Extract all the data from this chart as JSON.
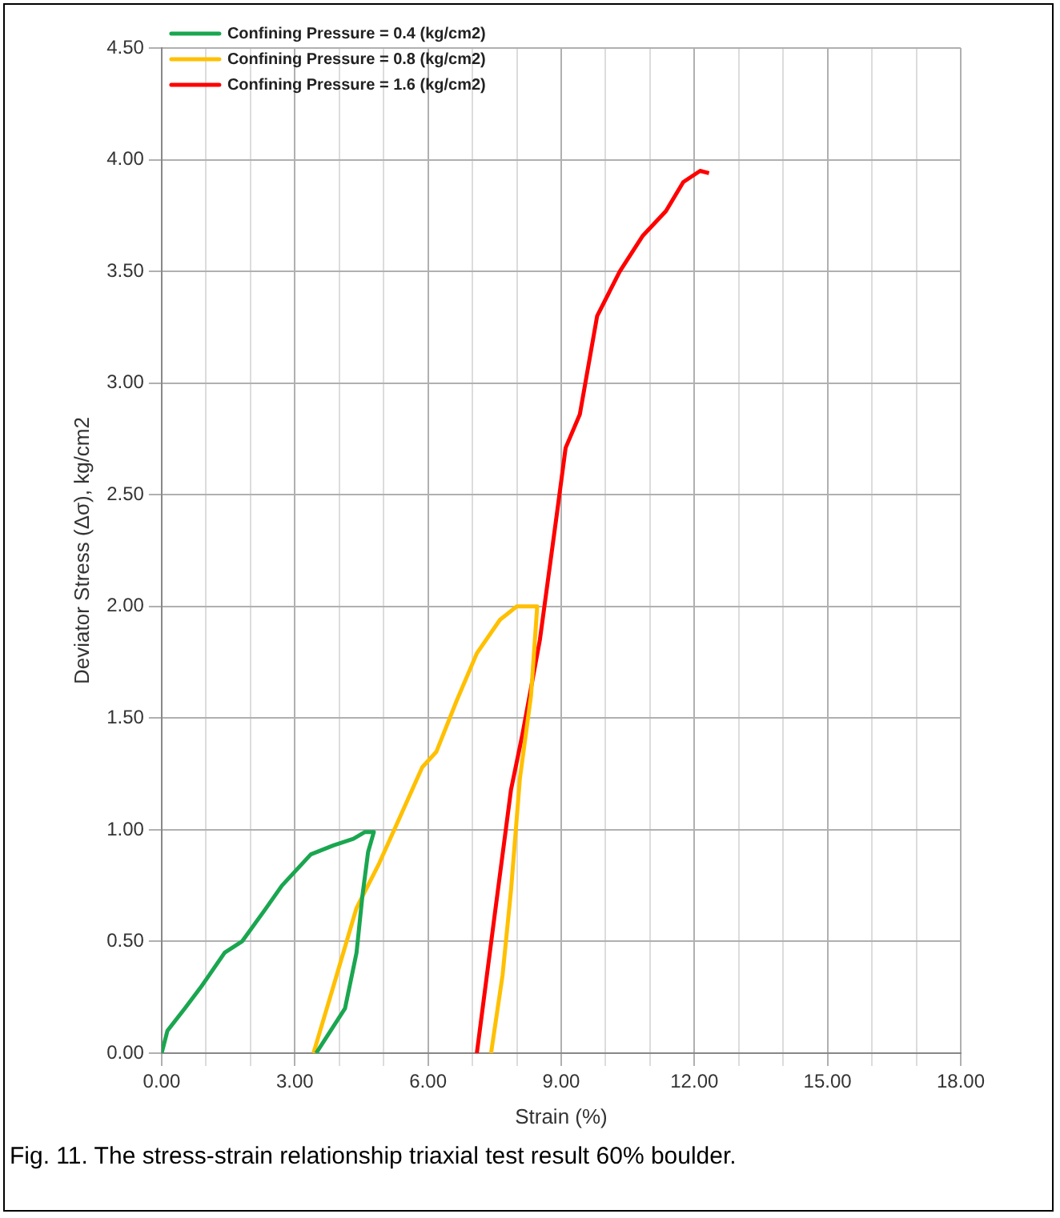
{
  "chart_data": {
    "type": "line",
    "xlabel": "Strain (%)",
    "ylabel": "Deviator Stress (Δσ), kg/cm2",
    "annotations": [
      "Fig. 11. The stress-strain relationship triaxial test result 60% boulder."
    ],
    "legend": "top left",
    "grid": true,
    "marker": "none",
    "line_style": "solid",
    "xlim": [
      0,
      18
    ],
    "ylim": [
      0,
      4.5
    ],
    "xticks": [
      {
        "value": 0,
        "label": "0.00"
      },
      {
        "value": 1,
        "label": null
      },
      {
        "value": 2,
        "label": null
      },
      {
        "value": 3,
        "label": "3.00"
      },
      {
        "value": 4,
        "label": null
      },
      {
        "value": 5,
        "label": null
      },
      {
        "value": 6,
        "label": "6.00"
      },
      {
        "value": 7,
        "label": null
      },
      {
        "value": 8,
        "label": null
      },
      {
        "value": 9,
        "label": "9.00"
      },
      {
        "value": 10,
        "label": null
      },
      {
        "value": 11,
        "label": null
      },
      {
        "value": 12,
        "label": "12.00"
      },
      {
        "value": 13,
        "label": null
      },
      {
        "value": 14,
        "label": null
      },
      {
        "value": 15,
        "label": "15.00"
      },
      {
        "value": 16,
        "label": null
      },
      {
        "value": 17,
        "label": null
      },
      {
        "value": 18,
        "label": "18.00"
      }
    ],
    "yticks": [
      {
        "value": 0,
        "label": "0.00"
      },
      {
        "value": 0.5,
        "label": "0.50"
      },
      {
        "value": 1,
        "label": "1.00"
      },
      {
        "value": 1.5,
        "label": "1.50"
      },
      {
        "value": 2,
        "label": "2.00"
      },
      {
        "value": 2.5,
        "label": "2.50"
      },
      {
        "value": 3,
        "label": "3.00"
      },
      {
        "value": 3.5,
        "label": "3.50"
      },
      {
        "value": 4,
        "label": "4.00"
      },
      {
        "value": 4.5,
        "label": "4.50"
      }
    ],
    "series": [
      {
        "name": "Confining Pressure = 0.4 (kg/cm2)",
        "color": "#1aa650",
        "x": [
          0,
          0.13,
          0.52,
          0.9,
          1.42,
          1.81,
          2.32,
          2.71,
          3.36,
          3.87,
          4.32,
          4.58,
          4.78,
          4.65,
          4.52,
          4.39,
          4.13,
          3.48
        ],
        "values": [
          0,
          0.1,
          0.2,
          0.3,
          0.45,
          0.5,
          0.64,
          0.75,
          0.89,
          0.93,
          0.96,
          0.99,
          0.99,
          0.9,
          0.7,
          0.45,
          0.2,
          0
        ]
      },
      {
        "name": "Confining Pressure = 0.8 (kg/cm2)",
        "color": "#ffc000",
        "x": [
          3.42,
          3.87,
          4.39,
          4.9,
          5.42,
          5.87,
          6.19,
          6.65,
          7.1,
          7.62,
          8.0,
          8.46,
          8.32,
          8.07,
          7.87,
          7.68,
          7.42
        ],
        "values": [
          0,
          0.3,
          0.65,
          0.85,
          1.08,
          1.28,
          1.35,
          1.58,
          1.79,
          1.94,
          2.0,
          2.0,
          1.6,
          1.23,
          0.73,
          0.35,
          0
        ]
      },
      {
        "name": "Confining Pressure = 1.6 (kg/cm2)",
        "color": "#ff0000",
        "x": [
          7.1,
          7.49,
          7.87,
          8.13,
          8.52,
          8.9,
          9.1,
          9.42,
          9.81,
          10.32,
          10.84,
          11.36,
          11.75,
          12.13,
          12.33
        ],
        "values": [
          0,
          0.6,
          1.18,
          1.43,
          1.85,
          2.41,
          2.71,
          2.86,
          3.3,
          3.5,
          3.66,
          3.77,
          3.9,
          3.95,
          3.94
        ]
      }
    ]
  }
}
